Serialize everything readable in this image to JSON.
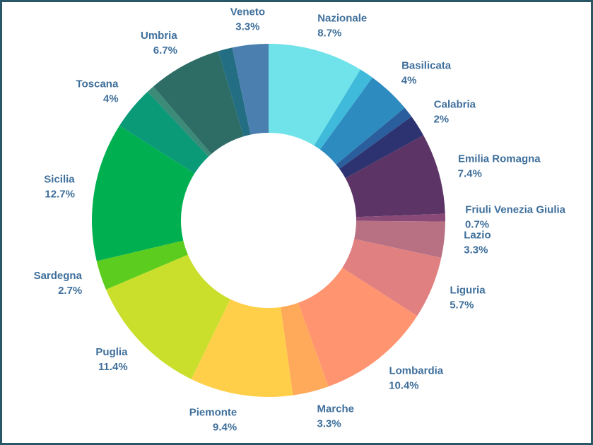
{
  "chart_data": {
    "type": "donut",
    "categories": [
      "Nazionale",
      null,
      "Basilicata",
      null,
      "Calabria",
      "Emilia Romagna",
      "Friuli Venezia Giulia",
      "Lazio",
      "Liguria",
      "Lombardia",
      "Marche",
      "Piemonte",
      "Puglia",
      "Sardegna",
      "Sicilia",
      "Toscana",
      null,
      "Umbria",
      null,
      "Veneto"
    ],
    "values": [
      8.7,
      1.3,
      4,
      1,
      2,
      7.4,
      0.7,
      3.3,
      5.7,
      10.4,
      3.3,
      9.4,
      11.4,
      2.7,
      12.7,
      4,
      0.7,
      6.7,
      1.3,
      3.3
    ],
    "value_labels": [
      "8.7%",
      null,
      "4%",
      null,
      "2%",
      "7.4%",
      "0.7%",
      "3.3%",
      "5.7%",
      "10.4%",
      "3.3%",
      "9.4%",
      "11.4%",
      "2.7%",
      "12.7%",
      "4%",
      null,
      "6.7%",
      null,
      "3.3%"
    ],
    "colors": [
      "#6fe3e9",
      "#3fbadb",
      "#2e8bc0",
      "#2b5e9c",
      "#2d3370",
      "#5c3566",
      "#8a4a78",
      "#b87083",
      "#e08080",
      "#ff9470",
      "#ffa95a",
      "#ffcf4a",
      "#c9df2c",
      "#5ccc1e",
      "#00b050",
      "#0b9a78",
      "#3c8a78",
      "#2e6c66",
      "#236e82",
      "#4a7fb0"
    ]
  }
}
